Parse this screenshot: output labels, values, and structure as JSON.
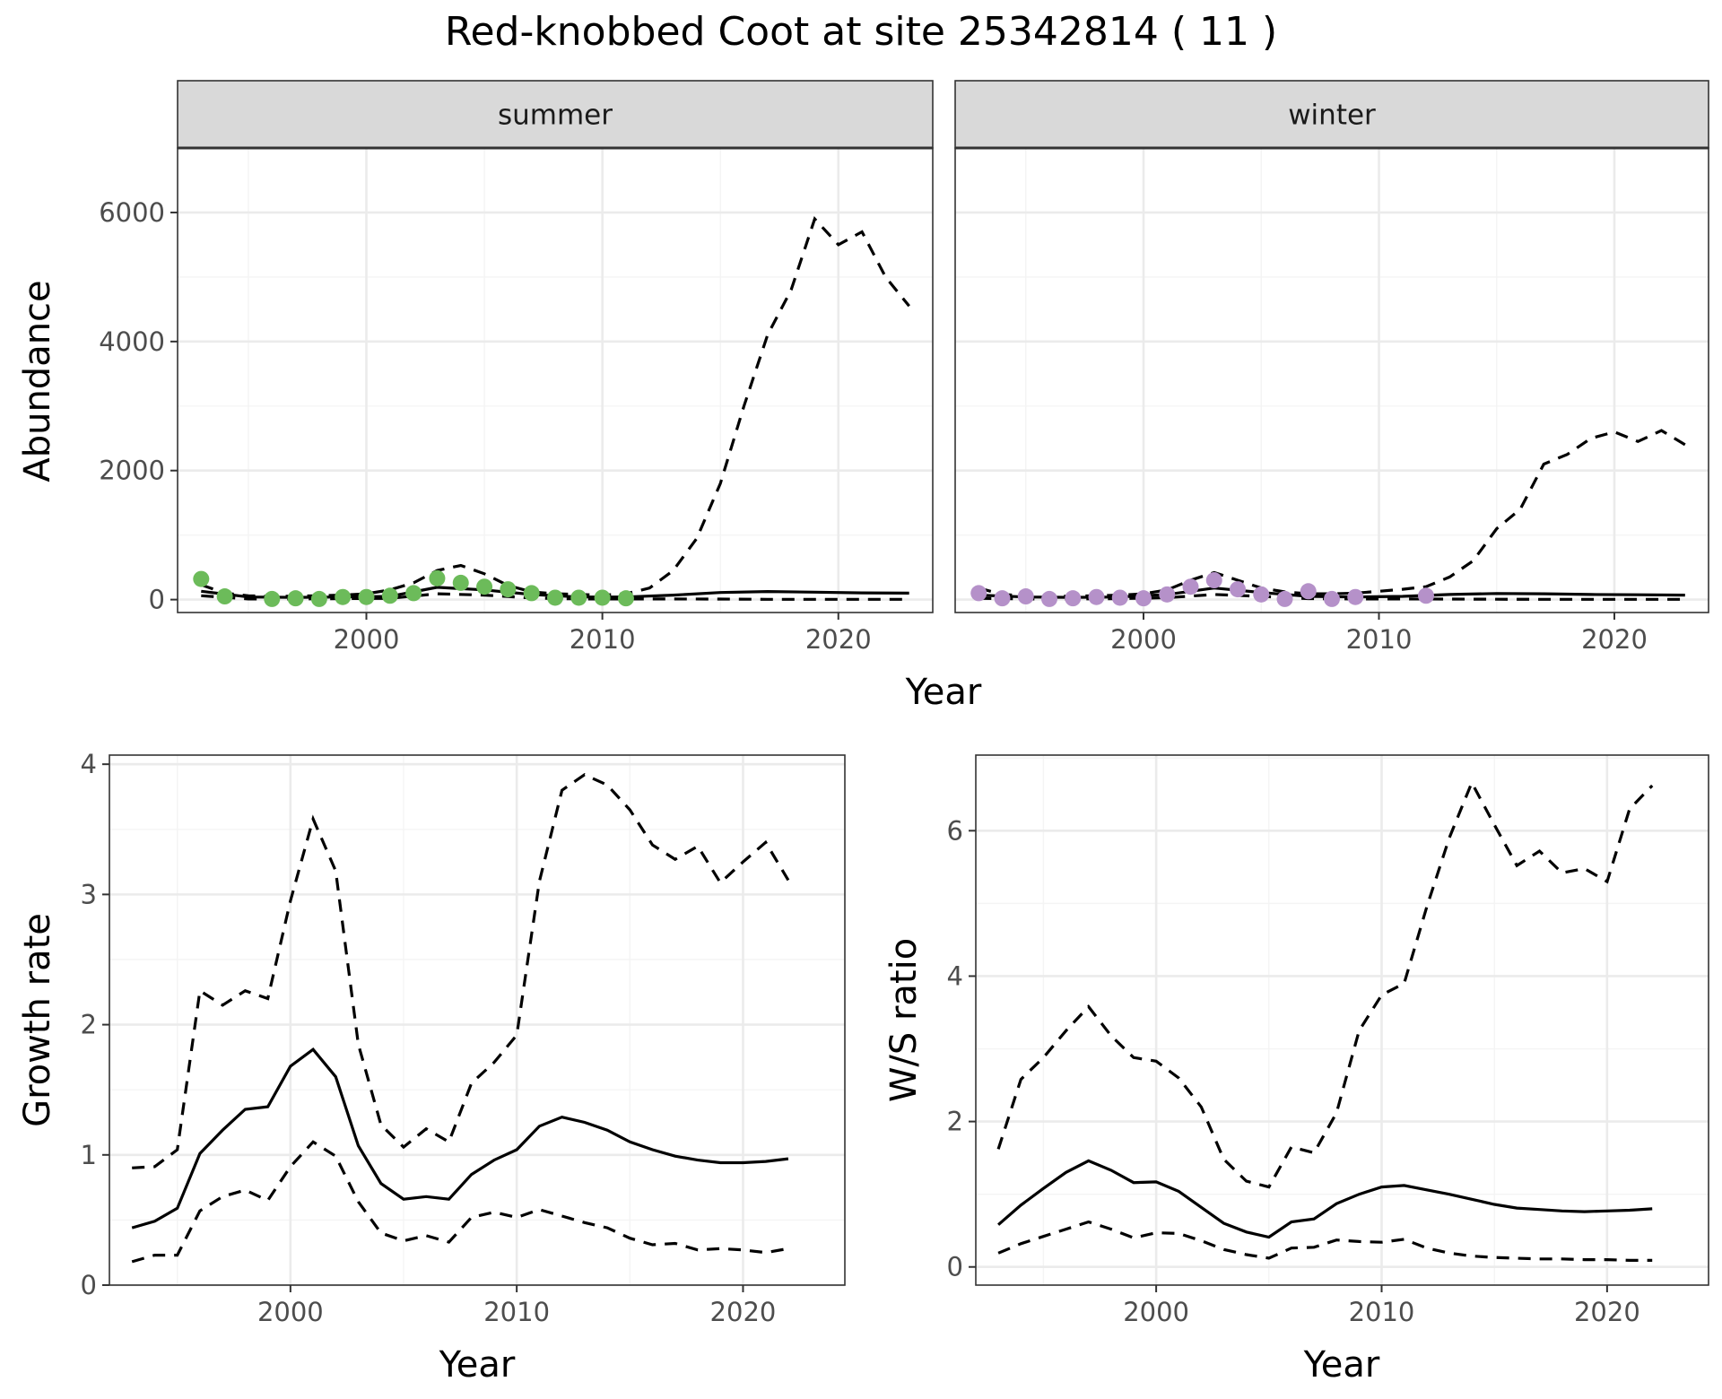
{
  "title": "Red-knobbed Coot at site 25342814 ( 11 )",
  "chart_data": [
    {
      "type": "line",
      "name": "abundance",
      "facets": [
        "summer",
        "winter"
      ],
      "xlabel": "Year",
      "ylabel": "Abundance",
      "xlim": [
        1992,
        2024
      ],
      "ylim": [
        -200,
        7000
      ],
      "x_ticks": [
        2000,
        2010,
        2020
      ],
      "y_ticks": [
        0,
        2000,
        4000,
        6000
      ],
      "grid": true,
      "panels": [
        {
          "facet": "summer",
          "point_color": "#6cbb5a",
          "estimate": {
            "x": [
              1993,
              1995,
              1997,
              1999,
              2001,
              2003,
              2005,
              2007,
              2009,
              2011,
              2013,
              2015,
              2017,
              2019,
              2021,
              2023
            ],
            "y": [
              130,
              40,
              35,
              40,
              50,
              190,
              150,
              80,
              40,
              40,
              70,
              110,
              125,
              115,
              105,
              100
            ]
          },
          "upper": {
            "x": [
              1993,
              1994,
              1995,
              1996,
              1997,
              1998,
              1999,
              2000,
              2001,
              2002,
              2003,
              2004,
              2005,
              2006,
              2007,
              2008,
              2009,
              2010,
              2011,
              2012,
              2013,
              2014,
              2015,
              2016,
              2017,
              2018,
              2019,
              2020,
              2021,
              2022,
              2023
            ],
            "y": [
              230,
              100,
              60,
              50,
              55,
              60,
              70,
              90,
              150,
              260,
              450,
              530,
              400,
              220,
              120,
              90,
              80,
              70,
              90,
              180,
              450,
              950,
              1800,
              3000,
              4100,
              4800,
              5900,
              5500,
              5700,
              5000,
              4550
            ]
          },
          "lower": {
            "x": [
              1993,
              1995,
              1997,
              1999,
              2001,
              2003,
              2005,
              2007,
              2009,
              2011,
              2013,
              2015,
              2017,
              2019,
              2021,
              2023
            ],
            "y": [
              60,
              10,
              10,
              15,
              20,
              90,
              70,
              25,
              10,
              10,
              10,
              8,
              5,
              5,
              5,
              5
            ]
          },
          "points": {
            "x": [
              1993,
              1994,
              1996,
              1997,
              1998,
              1999,
              2000,
              2001,
              2002,
              2003,
              2004,
              2005,
              2006,
              2007,
              2008,
              2009,
              2010,
              2011
            ],
            "y": [
              320,
              50,
              10,
              20,
              10,
              40,
              40,
              60,
              100,
              330,
              260,
              200,
              160,
              100,
              30,
              30,
              30,
              20
            ]
          }
        },
        {
          "facet": "winter",
          "point_color": "#b591c9",
          "estimate": {
            "x": [
              1993,
              1995,
              1997,
              1999,
              2001,
              2003,
              2005,
              2007,
              2009,
              2011,
              2013,
              2015,
              2017,
              2019,
              2021,
              2023
            ],
            "y": [
              70,
              40,
              35,
              40,
              80,
              180,
              110,
              50,
              40,
              50,
              80,
              95,
              90,
              80,
              75,
              70
            ]
          },
          "upper": {
            "x": [
              1993,
              1994,
              1995,
              1996,
              1997,
              1998,
              1999,
              2000,
              2001,
              2002,
              2003,
              2004,
              2005,
              2006,
              2007,
              2008,
              2009,
              2010,
              2011,
              2012,
              2013,
              2014,
              2015,
              2016,
              2017,
              2018,
              2019,
              2020,
              2021,
              2022,
              2023
            ],
            "y": [
              180,
              80,
              60,
              50,
              55,
              60,
              70,
              90,
              150,
              300,
              420,
              300,
              180,
              120,
              90,
              90,
              100,
              130,
              160,
              200,
              350,
              600,
              1100,
              1400,
              2100,
              2250,
              2500,
              2600,
              2450,
              2620,
              2400
            ]
          },
          "lower": {
            "x": [
              1993,
              1995,
              1997,
              1999,
              2001,
              2003,
              2005,
              2007,
              2009,
              2011,
              2013,
              2015,
              2017,
              2019,
              2021,
              2023
            ],
            "y": [
              20,
              10,
              10,
              15,
              30,
              80,
              50,
              15,
              10,
              10,
              8,
              6,
              5,
              5,
              5,
              5
            ]
          },
          "points": {
            "x": [
              1993,
              1994,
              1995,
              1996,
              1997,
              1998,
              1999,
              2000,
              2001,
              2002,
              2003,
              2004,
              2005,
              2006,
              2007,
              2008,
              2009,
              2012
            ],
            "y": [
              100,
              20,
              50,
              10,
              20,
              40,
              30,
              20,
              80,
              200,
              300,
              160,
              80,
              10,
              130,
              10,
              40,
              60
            ]
          }
        }
      ]
    },
    {
      "type": "line",
      "name": "growth",
      "xlabel": "Year",
      "ylabel": "Growth rate",
      "xlim": [
        1992,
        2024.5
      ],
      "ylim": [
        0,
        4.07
      ],
      "x_ticks": [
        2000,
        2010,
        2020
      ],
      "y_ticks": [
        0,
        1,
        2,
        3,
        4
      ],
      "grid": true,
      "estimate": {
        "x": [
          1993,
          1994,
          1995,
          1996,
          1997,
          1998,
          1999,
          2000,
          2001,
          2002,
          2003,
          2004,
          2005,
          2006,
          2007,
          2008,
          2009,
          2010,
          2011,
          2012,
          2013,
          2014,
          2015,
          2016,
          2017,
          2018,
          2019,
          2020,
          2021,
          2022
        ],
        "y": [
          0.44,
          0.49,
          0.59,
          1.01,
          1.19,
          1.35,
          1.37,
          1.68,
          1.81,
          1.6,
          1.07,
          0.78,
          0.66,
          0.68,
          0.66,
          0.85,
          0.96,
          1.04,
          1.22,
          1.29,
          1.25,
          1.19,
          1.1,
          1.04,
          0.99,
          0.96,
          0.94,
          0.94,
          0.95,
          0.97
        ]
      },
      "upper": {
        "x": [
          1993,
          1994,
          1995,
          1996,
          1997,
          1998,
          1999,
          2000,
          2001,
          2002,
          2003,
          2004,
          2005,
          2006,
          2007,
          2008,
          2009,
          2010,
          2011,
          2012,
          2013,
          2014,
          2015,
          2016,
          2017,
          2018,
          2019,
          2020,
          2021,
          2022
        ],
        "y": [
          0.9,
          0.91,
          1.04,
          2.26,
          2.15,
          2.26,
          2.2,
          2.95,
          3.58,
          3.18,
          1.85,
          1.23,
          1.06,
          1.2,
          1.1,
          1.55,
          1.71,
          1.92,
          3.1,
          3.8,
          3.92,
          3.84,
          3.65,
          3.38,
          3.27,
          3.37,
          3.09,
          3.25,
          3.4,
          3.11
        ]
      },
      "lower": {
        "x": [
          1993,
          1994,
          1995,
          1996,
          1997,
          1998,
          1999,
          2000,
          2001,
          2002,
          2003,
          2004,
          2005,
          2006,
          2007,
          2008,
          2009,
          2010,
          2011,
          2012,
          2013,
          2014,
          2015,
          2016,
          2017,
          2018,
          2019,
          2020,
          2021,
          2022
        ],
        "y": [
          0.18,
          0.23,
          0.23,
          0.57,
          0.68,
          0.73,
          0.65,
          0.91,
          1.1,
          0.99,
          0.64,
          0.4,
          0.34,
          0.38,
          0.33,
          0.52,
          0.56,
          0.52,
          0.58,
          0.53,
          0.48,
          0.44,
          0.36,
          0.31,
          0.32,
          0.27,
          0.28,
          0.27,
          0.25,
          0.28
        ]
      }
    },
    {
      "type": "line",
      "name": "ws_ratio",
      "xlabel": "Year",
      "ylabel": "W/S ratio",
      "xlim": [
        1992,
        2024.5
      ],
      "ylim": [
        -0.25,
        7.04
      ],
      "x_ticks": [
        2000,
        2010,
        2020
      ],
      "y_ticks": [
        0,
        2,
        4,
        6
      ],
      "grid": true,
      "estimate": {
        "x": [
          1993,
          1994,
          1995,
          1996,
          1997,
          1998,
          1999,
          2000,
          2001,
          2002,
          2003,
          2004,
          2005,
          2006,
          2007,
          2008,
          2009,
          2010,
          2011,
          2012,
          2013,
          2014,
          2015,
          2016,
          2017,
          2018,
          2019,
          2020,
          2021,
          2022
        ],
        "y": [
          0.58,
          0.85,
          1.08,
          1.3,
          1.46,
          1.33,
          1.16,
          1.17,
          1.04,
          0.82,
          0.6,
          0.48,
          0.41,
          0.62,
          0.66,
          0.87,
          1.0,
          1.1,
          1.12,
          1.06,
          1.0,
          0.93,
          0.86,
          0.81,
          0.79,
          0.77,
          0.76,
          0.77,
          0.78,
          0.8
        ]
      },
      "upper": {
        "x": [
          1993,
          1994,
          1995,
          1996,
          1997,
          1998,
          1999,
          2000,
          2001,
          2002,
          2003,
          2004,
          2005,
          2006,
          2007,
          2008,
          2009,
          2010,
          2011,
          2012,
          2013,
          2014,
          2015,
          2016,
          2017,
          2018,
          2019,
          2020,
          2021,
          2022
        ],
        "y": [
          1.62,
          2.58,
          2.88,
          3.25,
          3.58,
          3.18,
          2.88,
          2.83,
          2.6,
          2.2,
          1.48,
          1.18,
          1.1,
          1.65,
          1.57,
          2.12,
          3.25,
          3.74,
          3.9,
          4.95,
          5.9,
          6.66,
          6.08,
          5.52,
          5.72,
          5.42,
          5.48,
          5.3,
          6.3,
          6.62
        ]
      },
      "lower": {
        "x": [
          1993,
          1994,
          1995,
          1996,
          1997,
          1998,
          1999,
          2000,
          2001,
          2002,
          2003,
          2004,
          2005,
          2006,
          2007,
          2008,
          2009,
          2010,
          2011,
          2012,
          2013,
          2014,
          2015,
          2016,
          2017,
          2018,
          2019,
          2020,
          2021,
          2022
        ],
        "y": [
          0.19,
          0.32,
          0.42,
          0.52,
          0.62,
          0.52,
          0.4,
          0.47,
          0.46,
          0.36,
          0.24,
          0.17,
          0.12,
          0.26,
          0.27,
          0.37,
          0.35,
          0.34,
          0.38,
          0.26,
          0.19,
          0.15,
          0.13,
          0.12,
          0.11,
          0.11,
          0.1,
          0.1,
          0.09,
          0.09
        ]
      }
    }
  ]
}
